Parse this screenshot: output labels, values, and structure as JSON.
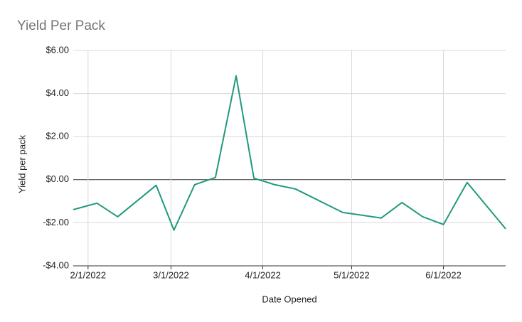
{
  "chart_data": {
    "type": "line",
    "title": "Yield Per Pack",
    "x_label": "Date Opened",
    "y_label": "Yield per pack",
    "xlim": [
      "1/27/2022",
      "6/22/2022"
    ],
    "xticks": [
      "2/1/2022",
      "3/1/2022",
      "4/1/2022",
      "5/1/2022",
      "6/1/2022"
    ],
    "ylim": [
      -4,
      6
    ],
    "yticks": [
      {
        "value": -4,
        "label": "-$4.00"
      },
      {
        "value": -2,
        "label": "-$2.00"
      },
      {
        "value": 0,
        "label": "$0.00"
      },
      {
        "value": 2,
        "label": "$2.00"
      },
      {
        "value": 4,
        "label": "$4.00"
      },
      {
        "value": 6,
        "label": "$6.00"
      }
    ],
    "grid": true,
    "x": [
      "1/27/2022",
      "2/4/2022",
      "2/11/2022",
      "2/24/2022",
      "3/2/2022",
      "3/9/2022",
      "3/16/2022",
      "3/23/2022",
      "3/29/2022",
      "4/5/2022",
      "4/12/2022",
      "4/28/2022",
      "5/11/2022",
      "5/18/2022",
      "5/25/2022",
      "6/1/2022",
      "6/9/2022",
      "6/22/2022"
    ],
    "series": [
      {
        "name": "Yield per pack",
        "color": "#1f9a7e",
        "values": [
          -1.39,
          -1.09,
          -1.72,
          -0.26,
          -2.34,
          -0.23,
          0.1,
          4.82,
          0.07,
          -0.23,
          -0.43,
          -1.52,
          -1.78,
          -1.06,
          -1.72,
          -2.08,
          -0.13,
          -2.28
        ]
      }
    ]
  }
}
